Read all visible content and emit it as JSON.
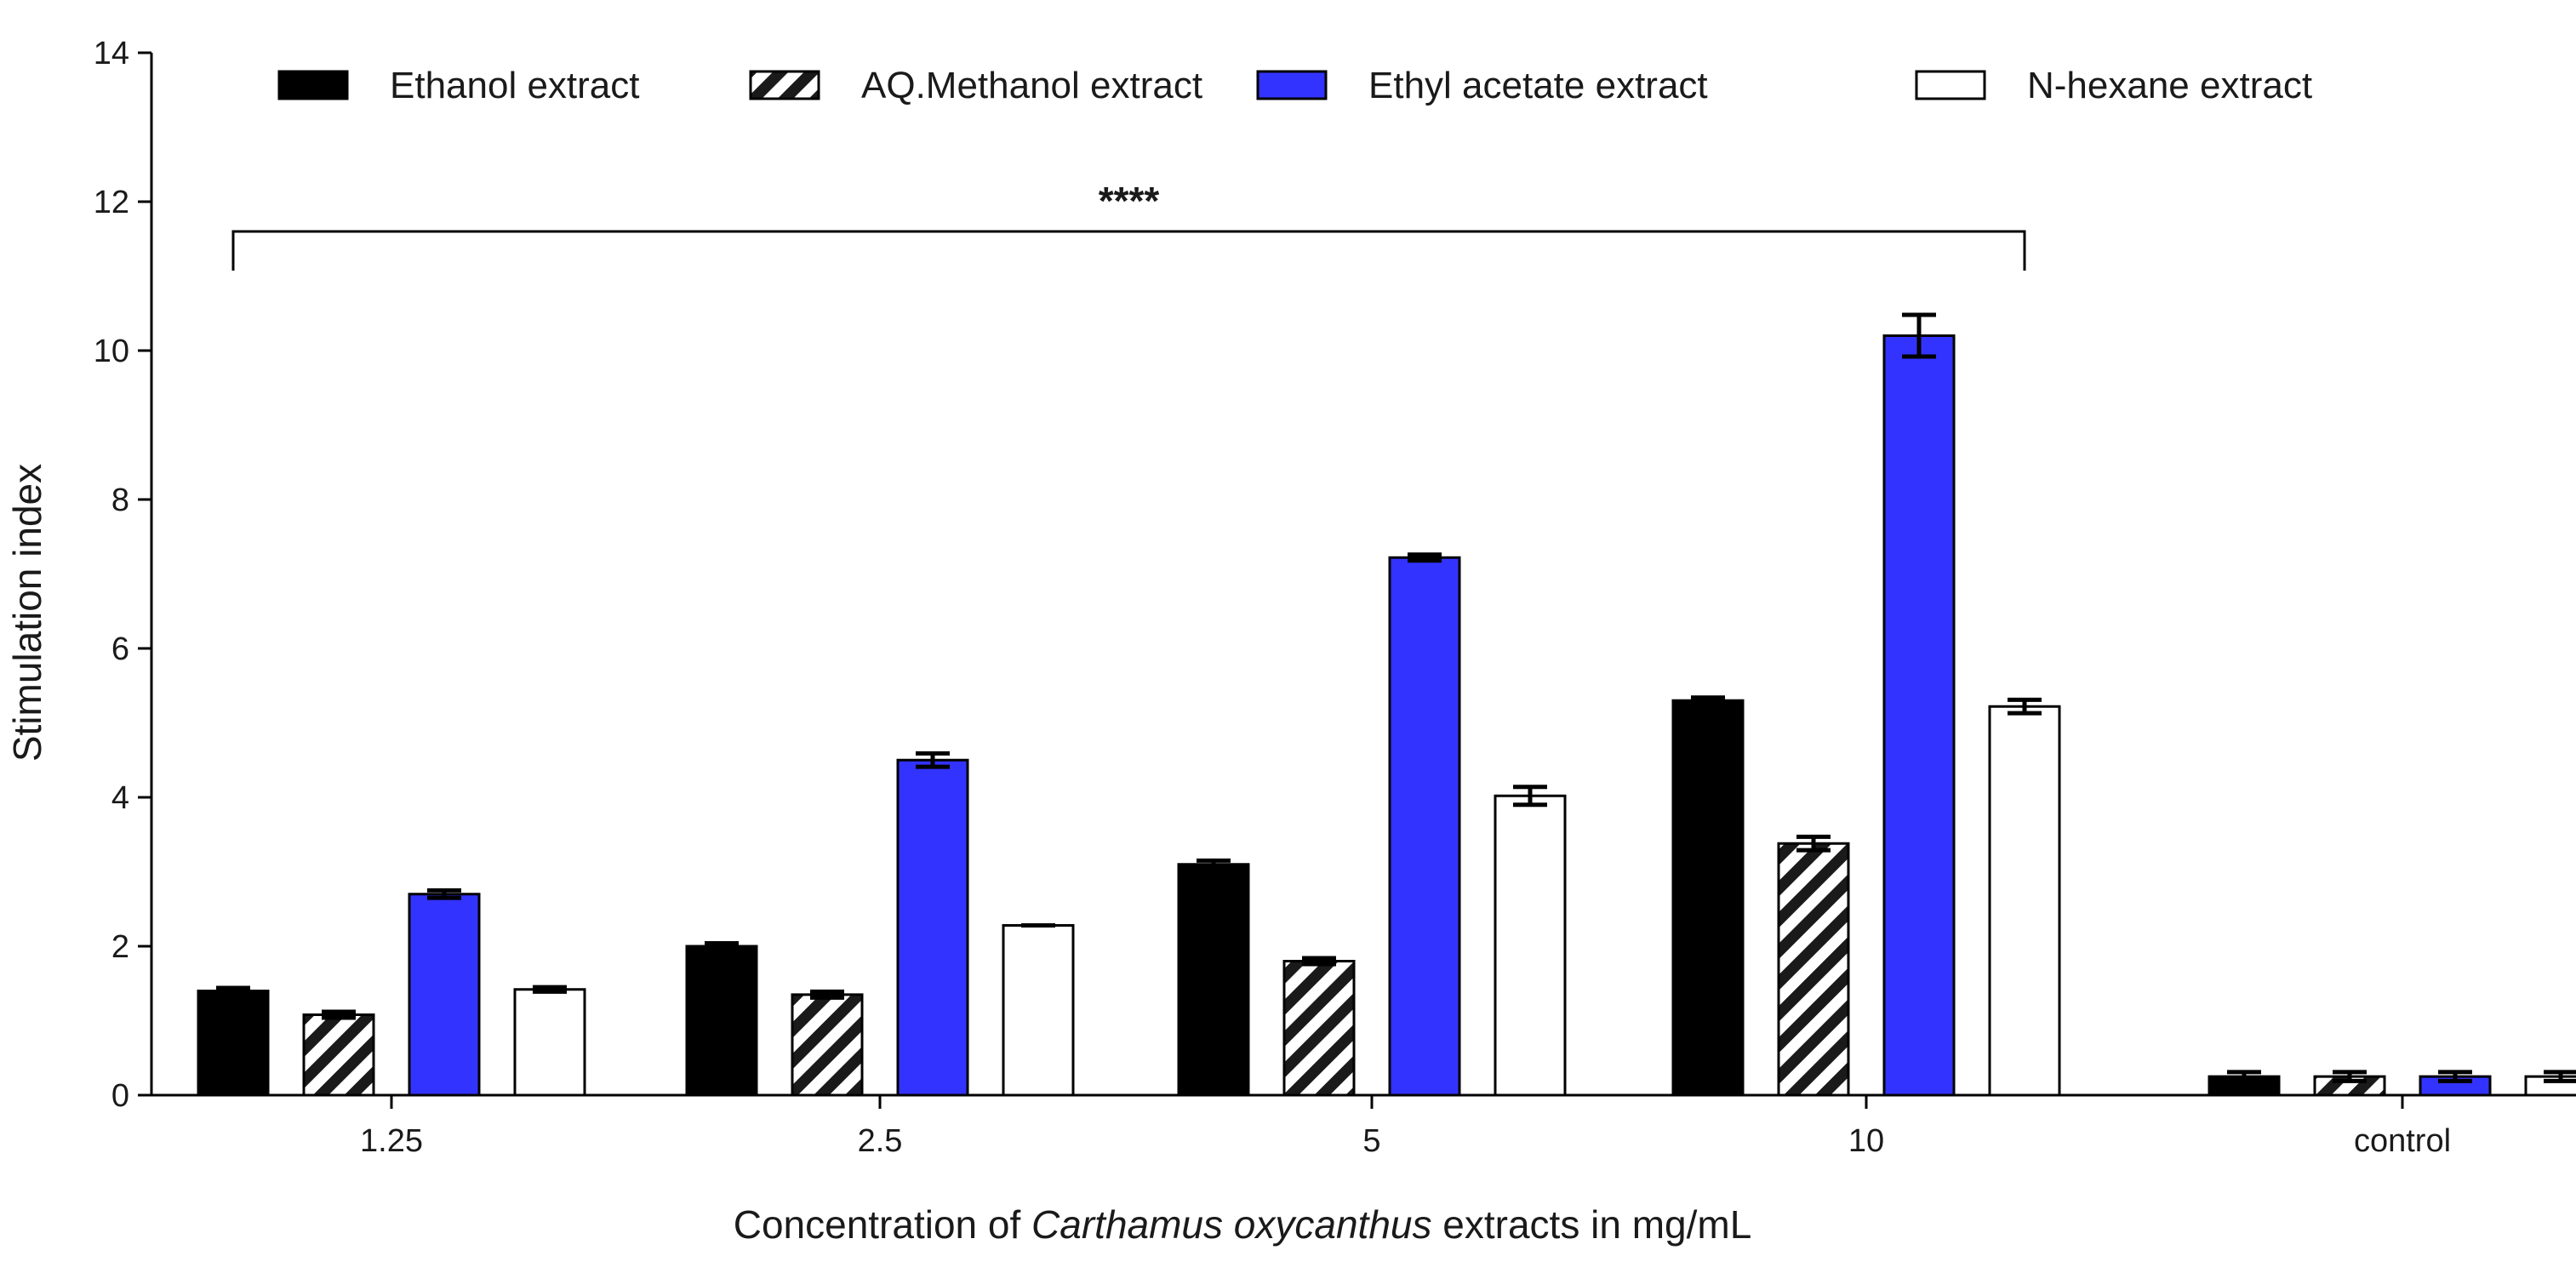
{
  "chart_data": {
    "type": "bar",
    "title": "",
    "xlabel_prefix": "Concentration of ",
    "xlabel_italic": "Carthamus oxycanthus",
    "xlabel_suffix": " extracts in mg/mL",
    "ylabel": "Stimulation index",
    "ylim": [
      0,
      14
    ],
    "yticks": [
      0,
      2,
      4,
      6,
      8,
      10,
      12,
      14
    ],
    "categories": [
      "1.25",
      "2.5",
      "5",
      "10",
      "control"
    ],
    "series": [
      {
        "name": "Ethanol extract",
        "fill": "#000000",
        "pattern": "solid",
        "values": [
          1.4,
          2.0,
          3.1,
          5.3,
          0.25
        ],
        "errors": [
          0.04,
          0.04,
          0.05,
          0.04,
          0.06
        ]
      },
      {
        "name": "AQ.Methanol extract",
        "fill": "#ffffff",
        "pattern": "hatch",
        "values": [
          1.08,
          1.35,
          1.8,
          3.38,
          0.25
        ],
        "errors": [
          0.04,
          0.04,
          0.04,
          0.09,
          0.06
        ]
      },
      {
        "name": "Ethyl acetate extract",
        "fill": "#3333ff",
        "pattern": "solid",
        "values": [
          2.7,
          4.5,
          7.22,
          10.2,
          0.25
        ],
        "errors": [
          0.05,
          0.09,
          0.04,
          0.28,
          0.06
        ]
      },
      {
        "name": "N-hexane extract",
        "fill": "#ffffff",
        "pattern": "solid",
        "values": [
          1.42,
          2.28,
          4.02,
          5.22,
          0.25
        ],
        "errors": [
          0.03,
          0.0,
          0.12,
          0.09,
          0.06
        ]
      }
    ],
    "annotations": [
      {
        "text": "****",
        "bracket_from_category": "1.25",
        "bracket_to_category": "10",
        "bracket_y": 11.6
      }
    ],
    "legend": "top"
  }
}
